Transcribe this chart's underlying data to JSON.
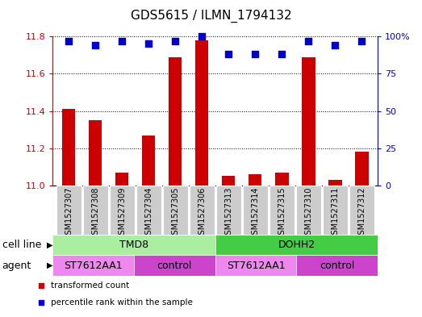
{
  "title": "GDS5615 / ILMN_1794132",
  "samples": [
    "GSM1527307",
    "GSM1527308",
    "GSM1527309",
    "GSM1527304",
    "GSM1527305",
    "GSM1527306",
    "GSM1527313",
    "GSM1527314",
    "GSM1527315",
    "GSM1527310",
    "GSM1527311",
    "GSM1527312"
  ],
  "transformed_counts": [
    11.41,
    11.35,
    11.07,
    11.27,
    11.69,
    11.78,
    11.05,
    11.06,
    11.07,
    11.69,
    11.03,
    11.18
  ],
  "percentile_ranks": [
    97,
    94,
    97,
    95,
    97,
    100,
    88,
    88,
    88,
    97,
    94,
    97
  ],
  "ylim_left": [
    11.0,
    11.8
  ],
  "ylim_right": [
    0,
    100
  ],
  "yticks_left": [
    11.0,
    11.2,
    11.4,
    11.6,
    11.8
  ],
  "yticks_right": [
    0,
    25,
    50,
    75,
    100
  ],
  "bar_color": "#cc0000",
  "dot_color": "#0000cc",
  "cell_line_groups": [
    {
      "label": "TMD8",
      "start": 0,
      "end": 6,
      "color": "#aaeea0"
    },
    {
      "label": "DOHH2",
      "start": 6,
      "end": 12,
      "color": "#44cc44"
    }
  ],
  "agent_groups": [
    {
      "label": "ST7612AA1",
      "start": 0,
      "end": 3,
      "color": "#ee88ee"
    },
    {
      "label": "control",
      "start": 3,
      "end": 6,
      "color": "#cc44cc"
    },
    {
      "label": "ST7612AA1",
      "start": 6,
      "end": 9,
      "color": "#ee88ee"
    },
    {
      "label": "control",
      "start": 9,
      "end": 12,
      "color": "#cc44cc"
    }
  ],
  "legend_items": [
    {
      "label": "transformed count",
      "color": "#cc0000"
    },
    {
      "label": "percentile rank within the sample",
      "color": "#0000cc"
    }
  ],
  "cell_line_label": "cell line",
  "agent_label": "agent",
  "bar_width": 0.5,
  "dot_size": 40,
  "sample_box_color": "#cccccc",
  "title_fontsize": 11,
  "tick_fontsize": 8,
  "label_fontsize": 9,
  "sample_fontsize": 7
}
